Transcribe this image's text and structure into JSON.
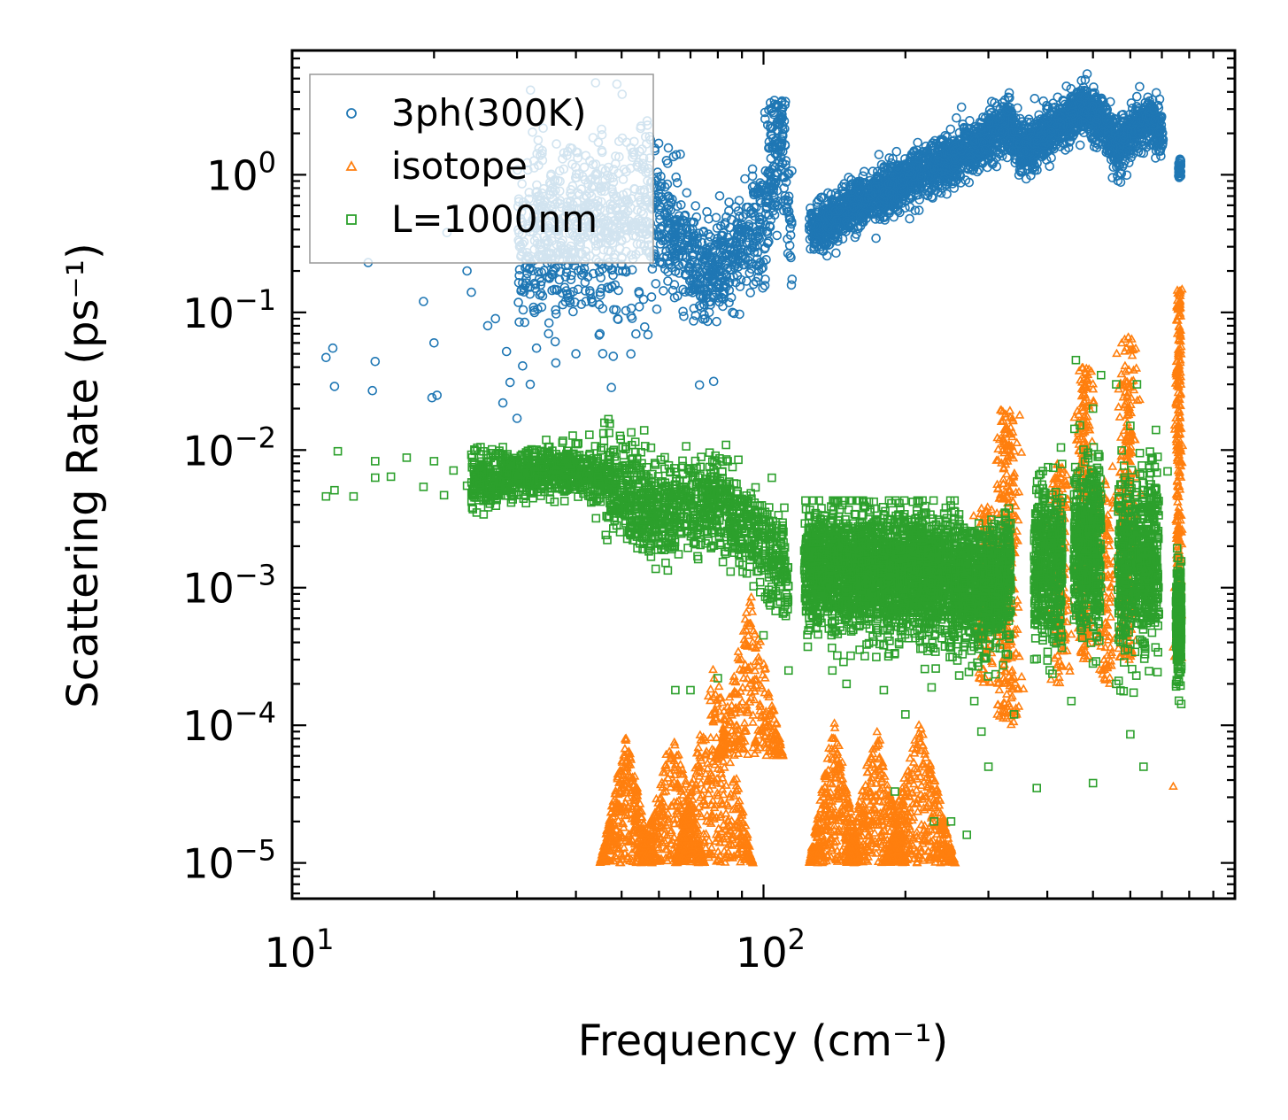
{
  "chart_data": {
    "type": "scatter",
    "title": "",
    "xlabel": "Frequency (cm⁻¹)",
    "ylabel": "Scattering Rate (ps⁻¹)",
    "xscale": "log",
    "yscale": "log",
    "xlim": [
      10,
      1000
    ],
    "ylim": [
      5.5e-06,
      8
    ],
    "x_ticks": [
      {
        "value": 10,
        "base": "10",
        "exp": "1"
      },
      {
        "value": 100,
        "base": "10",
        "exp": "2"
      }
    ],
    "y_ticks": [
      {
        "value": 1,
        "base": "10",
        "exp": "0"
      },
      {
        "value": 0.1,
        "base": "10",
        "exp": "−1"
      },
      {
        "value": 0.01,
        "base": "10",
        "exp": "−2"
      },
      {
        "value": 0.001,
        "base": "10",
        "exp": "−3"
      },
      {
        "value": 0.0001,
        "base": "10",
        "exp": "−4"
      },
      {
        "value": 1e-05,
        "base": "10",
        "exp": "−5"
      }
    ],
    "legend_position": "top-left",
    "series": [
      {
        "name": "3ph(300K)",
        "marker": "circle",
        "color": "#1f77b4"
      },
      {
        "name": "isotope",
        "marker": "triangle",
        "color": "#ff7f0e"
      },
      {
        "name": "L=1000nm",
        "marker": "square",
        "color": "#2ca02c"
      }
    ]
  }
}
